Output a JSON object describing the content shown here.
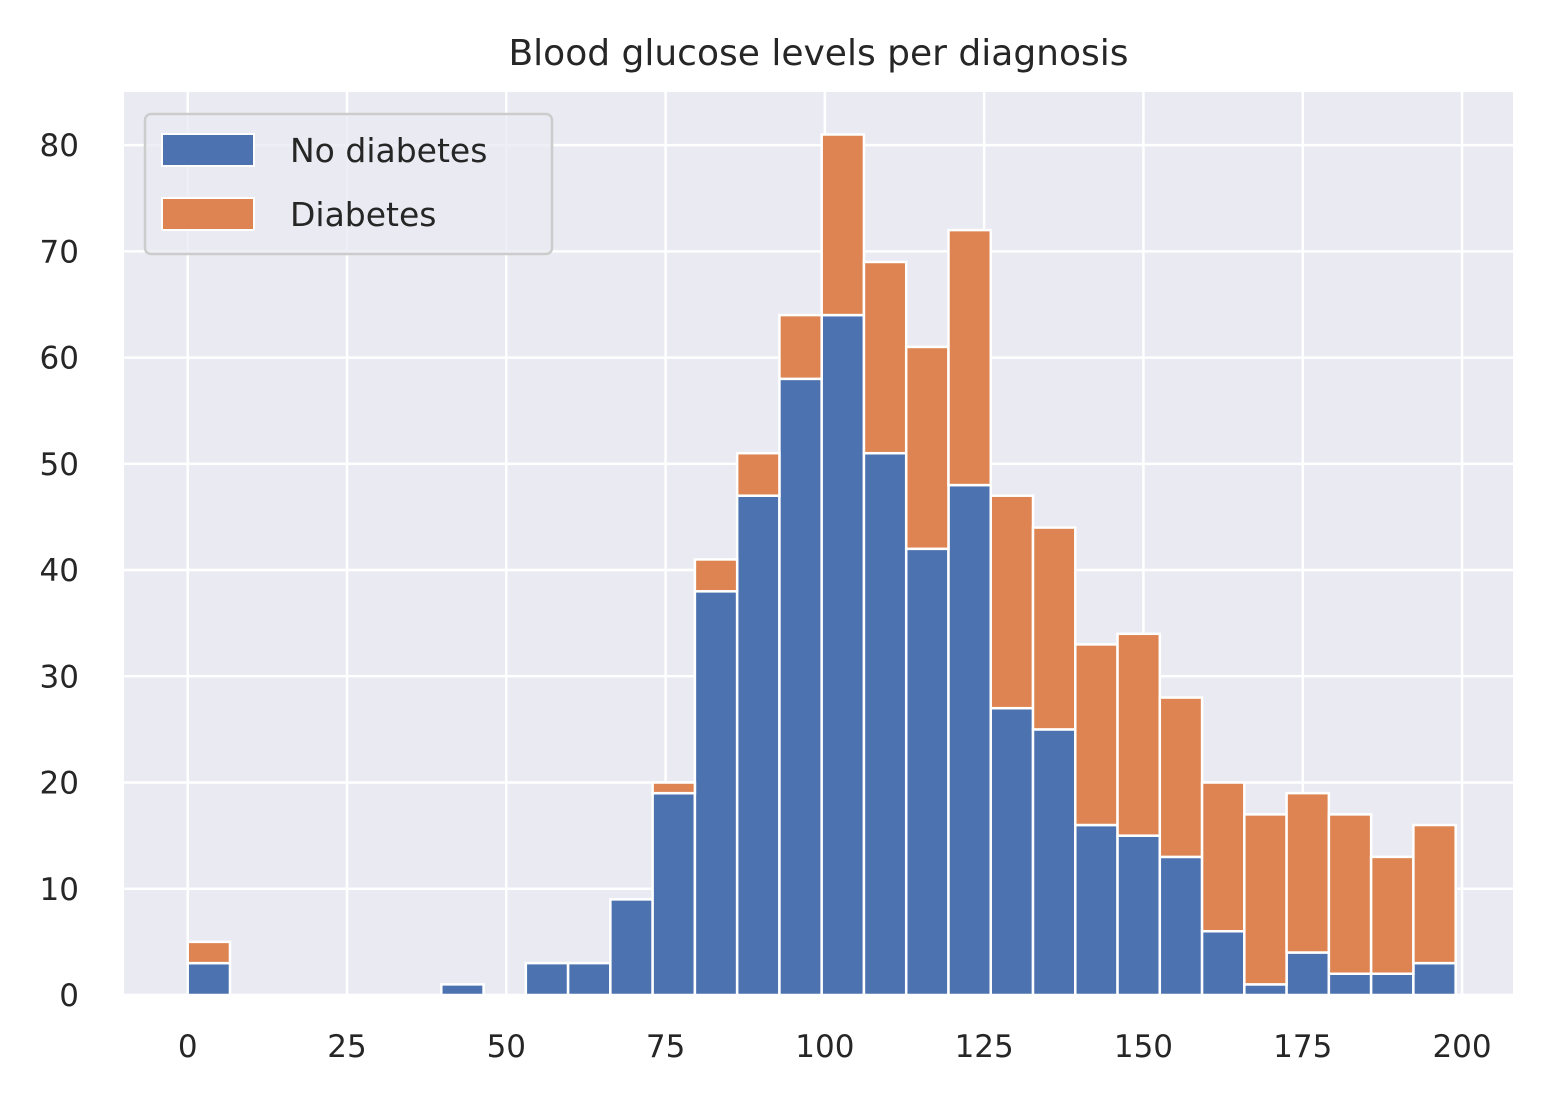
{
  "chart_data": {
    "type": "bar",
    "stacked": true,
    "title": "Blood glucose levels per diagnosis",
    "xlabel": "",
    "ylabel": "",
    "xlim": [
      -10,
      208
    ],
    "ylim": [
      0,
      85
    ],
    "bin_edges": [
      0,
      6.6333,
      13.2667,
      19.9,
      26.5333,
      33.1667,
      39.8,
      46.4333,
      53.0667,
      59.7,
      66.3333,
      72.9667,
      79.6,
      86.2333,
      92.8667,
      99.5,
      106.1333,
      112.7667,
      119.4,
      126.0333,
      132.6667,
      139.3,
      145.9333,
      152.5667,
      159.2,
      165.8333,
      172.4667,
      179.1,
      185.7333,
      192.3667,
      199
    ],
    "xticks": [
      0,
      25,
      50,
      75,
      100,
      125,
      150,
      175,
      200
    ],
    "xtick_labels": [
      "0",
      "25",
      "50",
      "75",
      "100",
      "125",
      "150",
      "175",
      "200"
    ],
    "yticks": [
      0,
      10,
      20,
      30,
      40,
      50,
      60,
      70,
      80
    ],
    "ytick_labels": [
      "0",
      "10",
      "20",
      "30",
      "40",
      "50",
      "60",
      "70",
      "80"
    ],
    "series": [
      {
        "name": "No diabetes",
        "color": "#4c72b0",
        "values": [
          3,
          0,
          0,
          0,
          0,
          0,
          1,
          0,
          3,
          3,
          9,
          19,
          38,
          47,
          58,
          64,
          51,
          42,
          48,
          27,
          25,
          16,
          15,
          13,
          6,
          1,
          4,
          2,
          2,
          3
        ]
      },
      {
        "name": "Diabetes",
        "color": "#dd8452",
        "values": [
          2,
          0,
          0,
          0,
          0,
          0,
          0,
          0,
          0,
          0,
          0,
          1,
          3,
          4,
          6,
          17,
          18,
          19,
          24,
          20,
          19,
          17,
          19,
          15,
          14,
          16,
          15,
          15,
          11,
          13
        ]
      }
    ],
    "grid": true,
    "legend_position": "upper-left",
    "colors": {
      "background": "#eaeaf2",
      "grid": "#ffffff",
      "edge": "#ffffff"
    }
  }
}
